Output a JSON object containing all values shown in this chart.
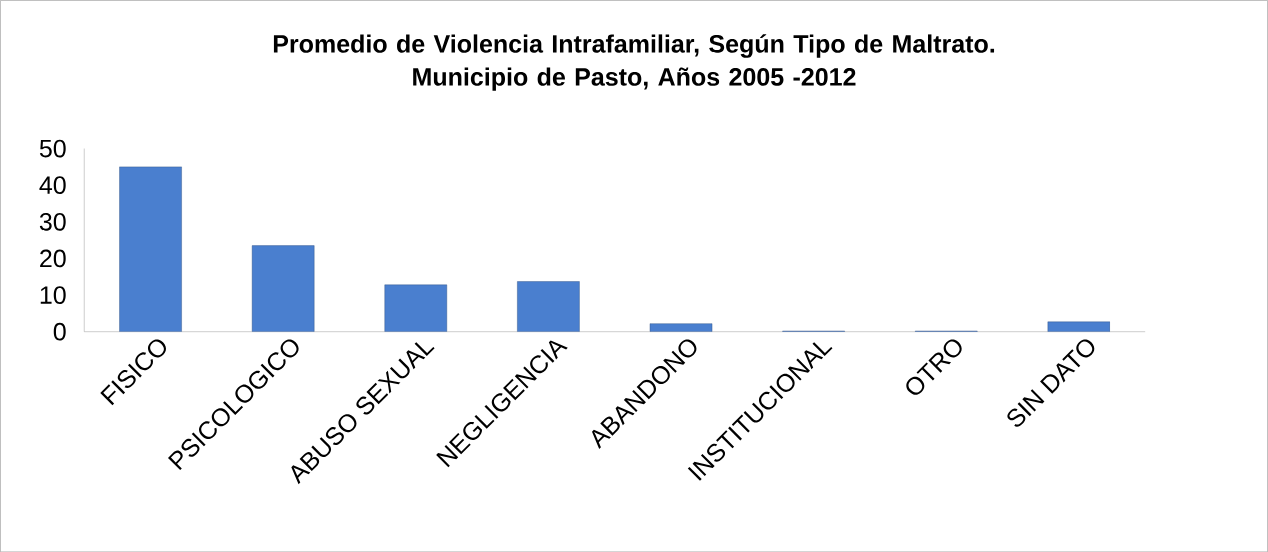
{
  "chart_data": {
    "type": "bar",
    "title": "Promedio de Violencia Intrafamiliar, Según Tipo de Maltrato.\nMunicipio de Pasto, Años 2005 -2012",
    "categories": [
      "FISICO",
      "PSICOLOGICO",
      "ABUSO SEXUAL",
      "NEGLIGENCIA",
      "ABANDONO",
      "INSTITUCIONAL",
      "OTRO",
      "SIN DATO"
    ],
    "values": [
      45,
      23.5,
      12.8,
      13.7,
      2.2,
      0.2,
      0.2,
      2.7
    ],
    "color": "#4a7fcf",
    "ylim": [
      0,
      50
    ],
    "yticks": [
      0,
      10,
      20,
      30,
      40,
      50
    ],
    "grid": false
  }
}
